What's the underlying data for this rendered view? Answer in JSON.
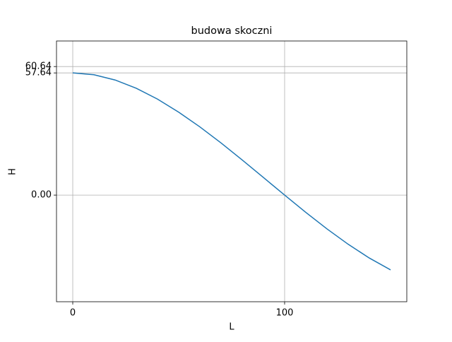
{
  "chart_data": {
    "type": "line",
    "title": "budowa skoczni",
    "x_label": "L",
    "y_label": "H",
    "x": [
      0,
      10,
      20,
      30,
      40,
      50,
      60,
      70,
      80,
      90,
      100,
      110,
      120,
      130,
      140,
      150
    ],
    "series": [
      {
        "color": "#1f77b4",
        "values": [
          57.64,
          56.77,
          54.29,
          50.39,
          45.28,
          39.12,
          32.18,
          24.59,
          16.56,
          8.3,
          0,
          -8.15,
          -15.94,
          -23.19,
          -29.7,
          -35.27
        ]
      }
    ],
    "xlim": [
      -7.67,
      157.67
    ],
    "ylim": [
      -50.3,
      72.7
    ],
    "xticks": [
      0,
      100
    ],
    "yticks": [
      {
        "value": 0,
        "label": "0.00"
      },
      {
        "value": 57.64,
        "label": "57.64"
      },
      {
        "value": 60.64,
        "label": "60.64"
      }
    ],
    "grid": true
  }
}
